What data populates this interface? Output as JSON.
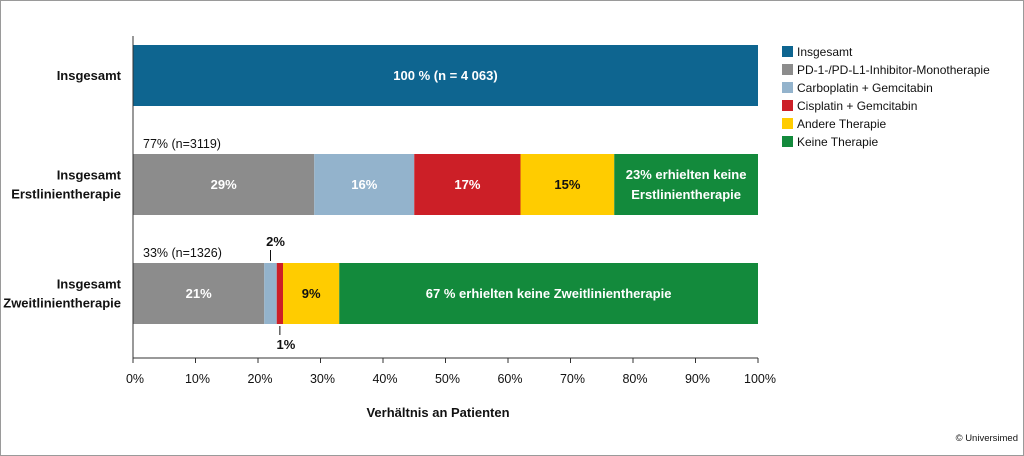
{
  "chart_data": {
    "type": "bar",
    "orientation": "horizontal",
    "stacked": true,
    "xlabel": "Verhältnis an Patienten",
    "xlim": [
      0,
      100
    ],
    "x_ticks": [
      "0%",
      "10%",
      "20%",
      "30%",
      "40%",
      "50%",
      "60%",
      "70%",
      "80%",
      "90%",
      "100%"
    ],
    "legend_position": "right",
    "legend": [
      {
        "name": "Insgesamt",
        "color": "#0e6590"
      },
      {
        "name": "PD-1-/PD-L1-Inhibitor-Monotherapie",
        "color": "#8c8c8c"
      },
      {
        "name": "Carboplatin + Gemcitabin",
        "color": "#93b3cc"
      },
      {
        "name": "Cisplatin + Gemcitabin",
        "color": "#cc1f27"
      },
      {
        "name": "Andere Therapie",
        "color": "#ffcc00"
      },
      {
        "name": "Keine Therapie",
        "color": "#138a3c"
      }
    ],
    "rows": [
      {
        "label": [
          "Insgesamt"
        ],
        "annotation": "",
        "segments": [
          {
            "series": "Insgesamt",
            "value": 100,
            "label": "100 % (n = 4 063)",
            "text_color": "#ffffff"
          }
        ]
      },
      {
        "label": [
          "Insgesamt",
          "Erstlinientherapie"
        ],
        "annotation": "77% (n=3119)",
        "segments": [
          {
            "series": "PD-1-/PD-L1-Inhibitor-Monotherapie",
            "value": 29,
            "label": "29%",
            "text_color": "#ffffff"
          },
          {
            "series": "Carboplatin + Gemcitabin",
            "value": 16,
            "label": "16%",
            "text_color": "#ffffff"
          },
          {
            "series": "Cisplatin + Gemcitabin",
            "value": 17,
            "label": "17%",
            "text_color": "#ffffff"
          },
          {
            "series": "Andere Therapie",
            "value": 15,
            "label": "15%",
            "text_color": "#111111"
          },
          {
            "series": "Keine Therapie",
            "value": 23,
            "label": [
              "23% erhielten keine",
              "Erstlinientherapie"
            ],
            "text_color": "#ffffff"
          }
        ]
      },
      {
        "label": [
          "Insgesamt",
          "Zweitlinientherapie"
        ],
        "annotation": "33% (n=1326)",
        "segments": [
          {
            "series": "PD-1-/PD-L1-Inhibitor-Monotherapie",
            "value": 21,
            "label": "21%",
            "text_color": "#ffffff"
          },
          {
            "series": "Carboplatin + Gemcitabin",
            "value": 2,
            "label": "2%",
            "text_color": "#111111",
            "callout": "above"
          },
          {
            "series": "Cisplatin + Gemcitabin",
            "value": 1,
            "label": "1%",
            "text_color": "#111111",
            "callout": "below"
          },
          {
            "series": "Andere Therapie",
            "value": 9,
            "label": "9%",
            "text_color": "#111111"
          },
          {
            "series": "Keine Therapie",
            "value": 67,
            "label": "67 % erhielten keine Zweitlinientherapie",
            "text_color": "#ffffff"
          }
        ]
      }
    ]
  },
  "footer": {
    "copyright": "© Universimed"
  }
}
